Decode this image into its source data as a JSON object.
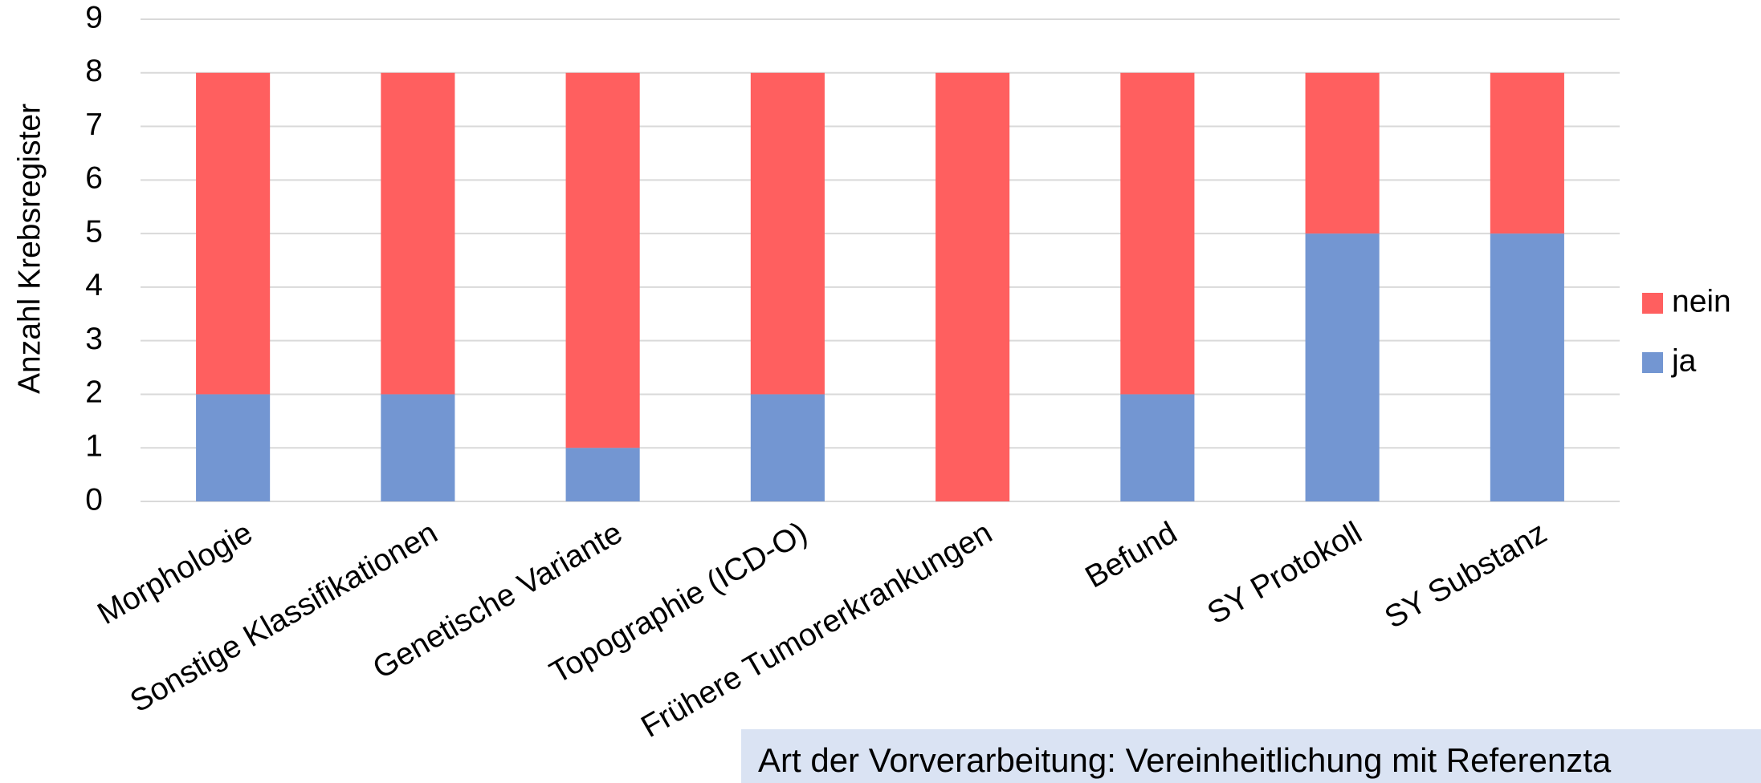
{
  "chart_data": {
    "type": "stacked_bar",
    "y_label": "Anzahl Krebsregister",
    "categories": [
      "Morphologie",
      "Sonstige Klassifikationen",
      "Genetische Variante",
      "Topographie (ICD-O)",
      "Frühere Tumorerkrankungen",
      "Befund",
      "SY Protokoll",
      "SY Substanz"
    ],
    "series": [
      {
        "name": "ja",
        "color": "#7396d2",
        "values": [
          2,
          2,
          1,
          2,
          0,
          2,
          5,
          5
        ]
      },
      {
        "name": "nein",
        "color": "#ff5f5f",
        "values": [
          6,
          6,
          7,
          6,
          8,
          6,
          3,
          3
        ]
      }
    ],
    "ylim": [
      0,
      9
    ],
    "yticks": [
      0,
      1,
      2,
      3,
      4,
      5,
      6,
      7,
      8,
      9
    ],
    "grid": true,
    "legend": "right",
    "annotation": "Art der Vorverarbeitung: Vereinheitlichung mit Referenzta"
  }
}
